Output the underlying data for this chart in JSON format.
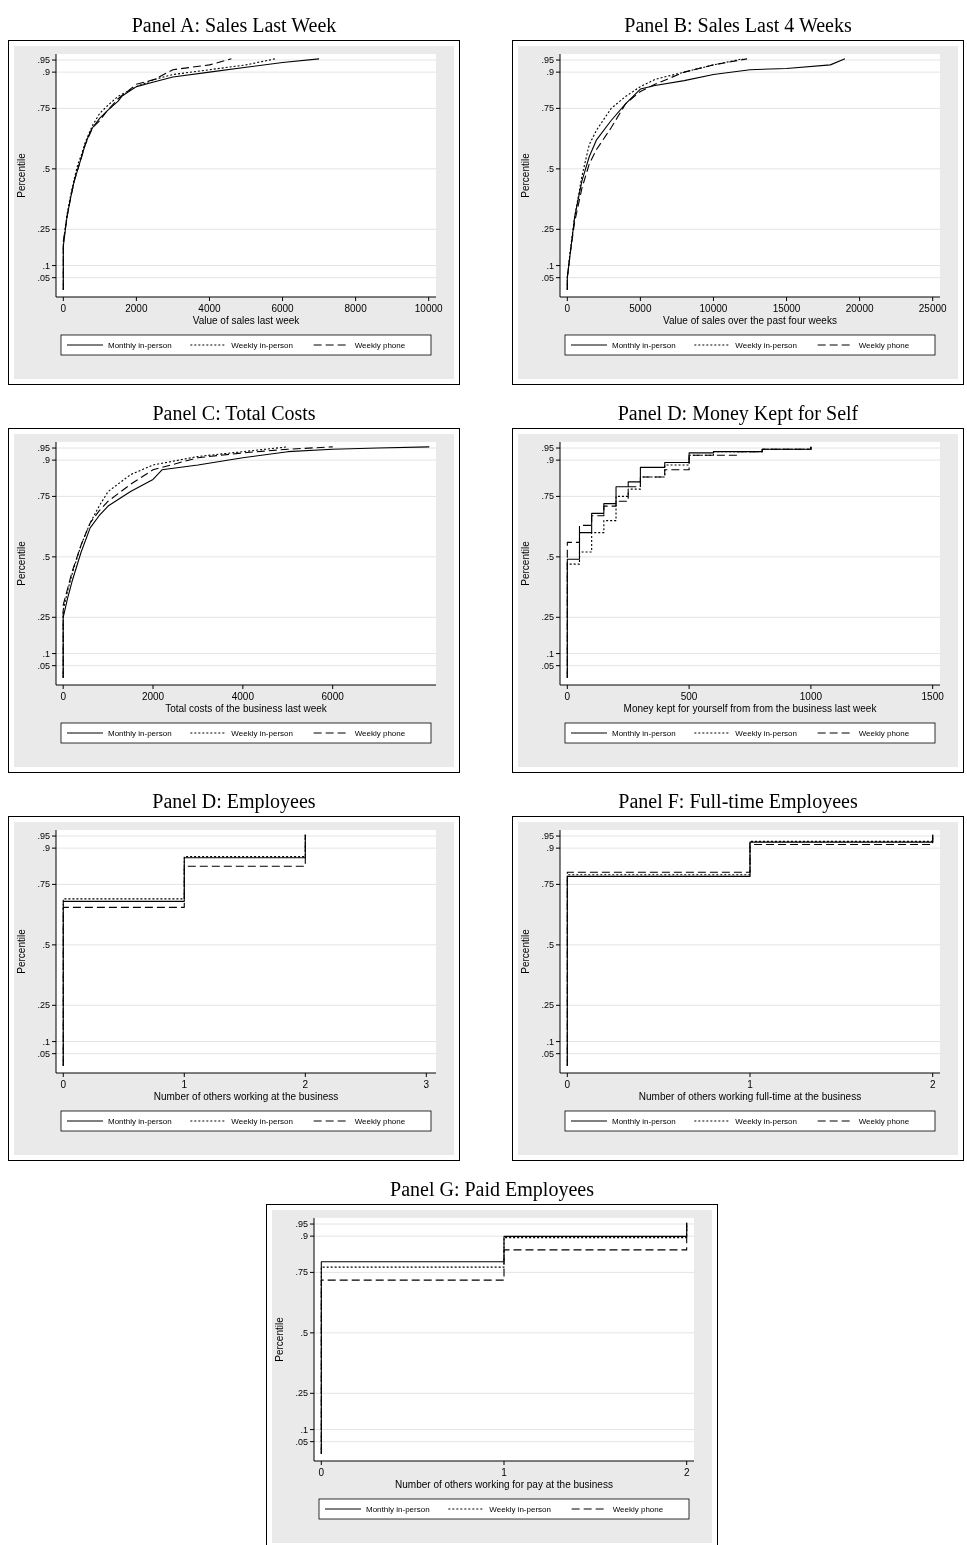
{
  "chart_data": [
    {
      "type": "line",
      "title": "Panel A: Sales Last Week",
      "xlabel": "Value of sales last week",
      "ylabel": "Percentile",
      "xlim": [
        -200,
        10200
      ],
      "xticks": [
        0,
        2000,
        4000,
        6000,
        8000,
        10000
      ],
      "ylim": [
        -0.03,
        0.975
      ],
      "yticks": [
        {
          "value": 0.05,
          "label": ".05"
        },
        {
          "value": 0.1,
          "label": ".1"
        },
        {
          "value": 0.25,
          "label": ".25"
        },
        {
          "value": 0.5,
          "label": ".5"
        },
        {
          "value": 0.75,
          "label": ".75"
        },
        {
          "value": 0.9,
          "label": ".9"
        },
        {
          "value": 0.95,
          "label": ".95"
        }
      ],
      "grid": "y",
      "legend": "bottom",
      "series": [
        {
          "name": "Monthly in-person",
          "color": "#000000",
          "line_style": "solid",
          "x": [
            0,
            0,
            100,
            200,
            300,
            400,
            500,
            600,
            700,
            800,
            1000,
            1200,
            1500,
            1600,
            2000,
            2500,
            3000,
            4000,
            5000,
            6000,
            7000
          ],
          "values": [
            0,
            0.18,
            0.3,
            0.38,
            0.45,
            0.5,
            0.55,
            0.6,
            0.64,
            0.67,
            0.71,
            0.74,
            0.78,
            0.8,
            0.84,
            0.86,
            0.88,
            0.9,
            0.92,
            0.94,
            0.955
          ]
        },
        {
          "name": "Weekly in-person",
          "color": "#000000",
          "line_style": "dotted",
          "x": [
            0,
            0,
            100,
            200,
            300,
            400,
            500,
            600,
            800,
            1000,
            1200,
            1500,
            2000,
            2500,
            3000,
            4000,
            5000,
            5800
          ],
          "values": [
            0,
            0.19,
            0.31,
            0.39,
            0.46,
            0.52,
            0.56,
            0.61,
            0.68,
            0.73,
            0.76,
            0.8,
            0.84,
            0.87,
            0.89,
            0.91,
            0.93,
            0.955
          ]
        },
        {
          "name": "Weekly phone",
          "color": "#000000",
          "line_style": "dashed",
          "x": [
            0,
            0,
            100,
            200,
            300,
            400,
            500,
            600,
            800,
            1000,
            1200,
            1500,
            2000,
            2500,
            3000,
            4000,
            4600
          ],
          "values": [
            0,
            0.2,
            0.3,
            0.38,
            0.45,
            0.5,
            0.55,
            0.6,
            0.67,
            0.7,
            0.74,
            0.79,
            0.85,
            0.87,
            0.91,
            0.93,
            0.955
          ]
        }
      ]
    },
    {
      "type": "line",
      "title": "Panel B: Sales Last 4 Weeks",
      "xlabel": "Value of sales over the past four weeks",
      "ylabel": "Percentile",
      "xlim": [
        -500,
        25500
      ],
      "xticks": [
        0,
        5000,
        10000,
        15000,
        20000,
        25000
      ],
      "ylim": [
        -0.03,
        0.975
      ],
      "yticks": [
        {
          "value": 0.05,
          "label": ".05"
        },
        {
          "value": 0.1,
          "label": ".1"
        },
        {
          "value": 0.25,
          "label": ".25"
        },
        {
          "value": 0.5,
          "label": ".5"
        },
        {
          "value": 0.75,
          "label": ".75"
        },
        {
          "value": 0.9,
          "label": ".9"
        },
        {
          "value": 0.95,
          "label": ".95"
        }
      ],
      "grid": "y",
      "legend": "bottom",
      "series": [
        {
          "name": "Monthly in-person",
          "color": "#000000",
          "line_style": "solid",
          "x": [
            0,
            0,
            200,
            500,
            1000,
            1500,
            2000,
            3000,
            4000,
            5000,
            6000,
            8000,
            10000,
            12500,
            15000,
            18000,
            19000
          ],
          "values": [
            0,
            0.05,
            0.15,
            0.3,
            0.45,
            0.55,
            0.62,
            0.7,
            0.77,
            0.83,
            0.845,
            0.865,
            0.89,
            0.91,
            0.915,
            0.93,
            0.955
          ]
        },
        {
          "name": "Weekly in-person",
          "color": "#000000",
          "line_style": "dotted",
          "x": [
            0,
            0,
            200,
            500,
            1000,
            1500,
            2000,
            3000,
            4000,
            5000,
            6000,
            8000,
            10000,
            12000
          ],
          "values": [
            0,
            0.05,
            0.16,
            0.3,
            0.47,
            0.6,
            0.66,
            0.75,
            0.8,
            0.84,
            0.87,
            0.9,
            0.93,
            0.955
          ]
        },
        {
          "name": "Weekly phone",
          "color": "#000000",
          "line_style": "dashed",
          "x": [
            0,
            0,
            200,
            500,
            1000,
            1500,
            2000,
            3000,
            4000,
            5000,
            6000,
            8000,
            10000,
            12300
          ],
          "values": [
            0,
            0.05,
            0.15,
            0.28,
            0.42,
            0.52,
            0.58,
            0.67,
            0.77,
            0.82,
            0.85,
            0.9,
            0.93,
            0.955
          ]
        }
      ]
    },
    {
      "type": "line",
      "title": "Panel C: Total Costs",
      "xlabel": "Total costs of the business last week",
      "ylabel": "Percentile",
      "xlim": [
        -160,
        8300
      ],
      "xticks": [
        0,
        2000,
        4000,
        6000
      ],
      "ylim": [
        -0.03,
        0.975
      ],
      "yticks": [
        {
          "value": 0.05,
          "label": ".05"
        },
        {
          "value": 0.1,
          "label": ".1"
        },
        {
          "value": 0.25,
          "label": ".25"
        },
        {
          "value": 0.5,
          "label": ".5"
        },
        {
          "value": 0.75,
          "label": ".75"
        },
        {
          "value": 0.9,
          "label": ".9"
        },
        {
          "value": 0.95,
          "label": ".95"
        }
      ],
      "grid": "y",
      "legend": "bottom",
      "series": [
        {
          "name": "Monthly in-person",
          "color": "#000000",
          "line_style": "solid",
          "x": [
            0,
            0,
            100,
            200,
            400,
            600,
            800,
            1000,
            1500,
            2000,
            2200,
            3000,
            4000,
            5000,
            6000,
            7000,
            8150
          ],
          "values": [
            0,
            0.25,
            0.33,
            0.4,
            0.52,
            0.62,
            0.67,
            0.71,
            0.77,
            0.82,
            0.86,
            0.88,
            0.91,
            0.935,
            0.945,
            0.95,
            0.955
          ]
        },
        {
          "name": "Weekly in-person",
          "color": "#000000",
          "line_style": "dotted",
          "x": [
            0,
            0,
            100,
            200,
            400,
            600,
            800,
            1000,
            1500,
            2000,
            3000,
            4000,
            5000
          ],
          "values": [
            0,
            0.28,
            0.36,
            0.43,
            0.55,
            0.64,
            0.71,
            0.77,
            0.84,
            0.88,
            0.915,
            0.935,
            0.955
          ]
        },
        {
          "name": "Weekly phone",
          "color": "#000000",
          "line_style": "dashed",
          "x": [
            0,
            0,
            100,
            200,
            400,
            600,
            800,
            1000,
            1500,
            2000,
            3000,
            4000,
            5000,
            6000
          ],
          "values": [
            0,
            0.3,
            0.37,
            0.44,
            0.55,
            0.64,
            0.69,
            0.73,
            0.8,
            0.86,
            0.91,
            0.93,
            0.945,
            0.955
          ]
        }
      ]
    },
    {
      "type": "step",
      "title": "Panel D: Money Kept for Self",
      "xlabel": "Money kept for yourself from from the business last week",
      "ylabel": "Percentile",
      "xlim": [
        -30,
        1530
      ],
      "xticks": [
        0,
        500,
        1000,
        1500
      ],
      "ylim": [
        -0.03,
        0.975
      ],
      "yticks": [
        {
          "value": 0.05,
          "label": ".05"
        },
        {
          "value": 0.1,
          "label": ".1"
        },
        {
          "value": 0.25,
          "label": ".25"
        },
        {
          "value": 0.5,
          "label": ".5"
        },
        {
          "value": 0.75,
          "label": ".75"
        },
        {
          "value": 0.9,
          "label": ".9"
        },
        {
          "value": 0.95,
          "label": ".95"
        }
      ],
      "grid": "y",
      "legend": "bottom",
      "series": [
        {
          "name": "Monthly in-person",
          "color": "#000000",
          "line_style": "solid",
          "x": [
            0,
            0,
            50,
            100,
            150,
            200,
            250,
            300,
            400,
            500,
            600,
            800,
            1000
          ],
          "values": [
            0,
            0.49,
            0.6,
            0.68,
            0.72,
            0.79,
            0.81,
            0.87,
            0.89,
            0.93,
            0.935,
            0.945,
            0.955
          ]
        },
        {
          "name": "Weekly in-person",
          "color": "#000000",
          "line_style": "dotted",
          "x": [
            0,
            0,
            50,
            100,
            150,
            200,
            250,
            300,
            400,
            500,
            600,
            800,
            1000
          ],
          "values": [
            0,
            0.47,
            0.52,
            0.6,
            0.65,
            0.75,
            0.78,
            0.83,
            0.88,
            0.92,
            0.935,
            0.945,
            0.955
          ]
        },
        {
          "name": "Weekly phone",
          "color": "#000000",
          "line_style": "dashed",
          "x": [
            0,
            0,
            50,
            100,
            150,
            200,
            250,
            300,
            400,
            500,
            700,
            800,
            1000
          ],
          "values": [
            0,
            0.56,
            0.63,
            0.67,
            0.71,
            0.73,
            0.79,
            0.83,
            0.86,
            0.92,
            0.935,
            0.945,
            0.955
          ]
        }
      ]
    },
    {
      "type": "step",
      "title": "Panel D: Employees",
      "xlabel": "Number of others working at the business",
      "ylabel": "Percentile",
      "xlim": [
        -0.06,
        3.08
      ],
      "xticks": [
        0,
        1,
        2,
        3
      ],
      "ylim": [
        -0.03,
        0.975
      ],
      "yticks": [
        {
          "value": 0.05,
          "label": ".05"
        },
        {
          "value": 0.1,
          "label": ".1"
        },
        {
          "value": 0.25,
          "label": ".25"
        },
        {
          "value": 0.5,
          "label": ".5"
        },
        {
          "value": 0.75,
          "label": ".75"
        },
        {
          "value": 0.9,
          "label": ".9"
        },
        {
          "value": 0.95,
          "label": ".95"
        }
      ],
      "grid": "y",
      "legend": "bottom",
      "series": [
        {
          "name": "Monthly in-person",
          "color": "#000000",
          "line_style": "solid",
          "x": [
            0,
            0,
            1,
            2
          ],
          "values": [
            0,
            0.68,
            0.86,
            0.955
          ]
        },
        {
          "name": "Weekly in-person",
          "color": "#000000",
          "line_style": "dotted",
          "x": [
            0,
            0,
            1,
            2
          ],
          "values": [
            0,
            0.69,
            0.865,
            0.955
          ]
        },
        {
          "name": "Weekly phone",
          "color": "#000000",
          "line_style": "dashed",
          "x": [
            0,
            0,
            1,
            2
          ],
          "values": [
            0,
            0.655,
            0.825,
            0.955
          ]
        }
      ]
    },
    {
      "type": "step",
      "title": "Panel F: Full-time Employees",
      "xlabel": "Number of others working full-time at the business",
      "ylabel": "Percentile",
      "xlim": [
        -0.04,
        2.04
      ],
      "xticks": [
        0,
        1,
        2
      ],
      "ylim": [
        -0.03,
        0.975
      ],
      "yticks": [
        {
          "value": 0.05,
          "label": ".05"
        },
        {
          "value": 0.1,
          "label": ".1"
        },
        {
          "value": 0.25,
          "label": ".25"
        },
        {
          "value": 0.5,
          "label": ".5"
        },
        {
          "value": 0.75,
          "label": ".75"
        },
        {
          "value": 0.9,
          "label": ".9"
        },
        {
          "value": 0.95,
          "label": ".95"
        }
      ],
      "grid": "y",
      "legend": "bottom",
      "series": [
        {
          "name": "Monthly in-person",
          "color": "#000000",
          "line_style": "solid",
          "x": [
            0,
            0,
            1,
            2
          ],
          "values": [
            0,
            0.783,
            0.925,
            0.955
          ]
        },
        {
          "name": "Weekly in-person",
          "color": "#000000",
          "line_style": "dotted",
          "x": [
            0,
            0,
            1,
            2
          ],
          "values": [
            0,
            0.79,
            0.928,
            0.955
          ]
        },
        {
          "name": "Weekly phone",
          "color": "#000000",
          "line_style": "dashed",
          "x": [
            0,
            0,
            1,
            2
          ],
          "values": [
            0,
            0.8,
            0.915,
            0.955
          ]
        }
      ]
    },
    {
      "type": "step",
      "title": "Panel G: Paid Employees",
      "xlabel": "Number of others working for pay at the business",
      "ylabel": "Percentile",
      "xlim": [
        -0.04,
        2.04
      ],
      "xticks": [
        0,
        1,
        2
      ],
      "ylim": [
        -0.03,
        0.975
      ],
      "yticks": [
        {
          "value": 0.05,
          "label": ".05"
        },
        {
          "value": 0.1,
          "label": ".1"
        },
        {
          "value": 0.25,
          "label": ".25"
        },
        {
          "value": 0.5,
          "label": ".5"
        },
        {
          "value": 0.75,
          "label": ".75"
        },
        {
          "value": 0.9,
          "label": ".9"
        },
        {
          "value": 0.95,
          "label": ".95"
        }
      ],
      "grid": "y",
      "legend": "bottom",
      "series": [
        {
          "name": "Monthly in-person",
          "color": "#000000",
          "line_style": "solid",
          "x": [
            0,
            0,
            1,
            2
          ],
          "values": [
            0,
            0.794,
            0.899,
            0.955
          ]
        },
        {
          "name": "Weekly in-person",
          "color": "#000000",
          "line_style": "dotted",
          "x": [
            0,
            0,
            1,
            2
          ],
          "values": [
            0,
            0.772,
            0.894,
            0.955
          ]
        },
        {
          "name": "Weekly phone",
          "color": "#000000",
          "line_style": "dashed",
          "x": [
            0,
            0,
            1,
            2
          ],
          "values": [
            0,
            0.718,
            0.843,
            0.955
          ]
        }
      ]
    }
  ]
}
